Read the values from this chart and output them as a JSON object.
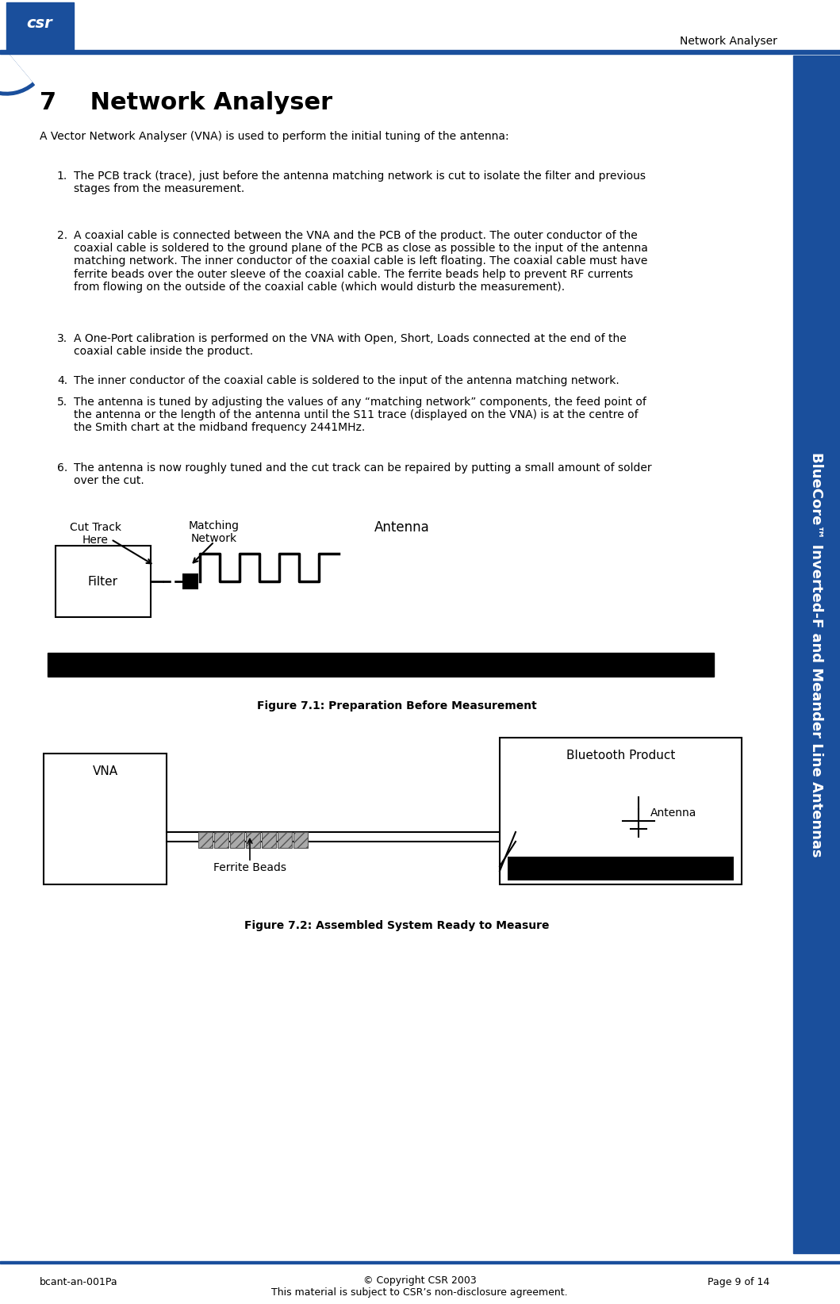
{
  "page_bg": "#ffffff",
  "header_line_color": "#1a4f9c",
  "header_text": "Network Analyser",
  "header_text_color": "#000000",
  "logo_blue_dark": "#1a4f9c",
  "logo_blue_light": "#4a90d9",
  "chapter_number": "7",
  "chapter_title": "Network Analyser",
  "intro_text": "A Vector Network Analyser (VNA) is used to perform the initial tuning of the antenna:",
  "list_items": [
    "The PCB track (trace), just before the antenna matching network is cut to isolate the filter and previous\nstages from the measurement.",
    "A coaxial cable is connected between the VNA and the PCB of the product. The outer conductor of the\ncoaxial cable is soldered to the ground plane of the PCB as close as possible to the input of the antenna\nmatching network. The inner conductor of the coaxial cable is left floating. The coaxial cable must have\nferrite beads over the outer sleeve of the coaxial cable. The ferrite beads help to prevent RF currents\nfrom flowing on the outside of the coaxial cable (which would disturb the measurement).",
    "A One-Port calibration is performed on the VNA with Open, Short, Loads connected at the end of the\ncoaxial cable inside the product.",
    "The inner conductor of the coaxial cable is soldered to the input of the antenna matching network.",
    "The antenna is tuned by adjusting the values of any “matching network” components, the feed point of\nthe antenna or the length of the antenna until the S11 trace (displayed on the VNA) is at the centre of\nthe Smith chart at the midband frequency 2441MHz.",
    "The antenna is now roughly tuned and the cut track can be repaired by putting a small amount of solder\nover the cut."
  ],
  "figure1_caption": "Figure 7.1: Preparation Before Measurement",
  "figure2_caption": "Figure 7.2: Assembled System Ready to Measure",
  "sidebar_text": "BlueCore™ Inverted-F and Meander Line Antennas",
  "sidebar_bg": "#1a4f9c",
  "sidebar_text_color": "#ffffff",
  "footer_left": "bcant-an-001Pa",
  "footer_center_line1": "© Copyright CSR 2003",
  "footer_center_line2": "This material is subject to CSR’s non-disclosure agreement.",
  "footer_right": "Page 9 of 14",
  "footer_line_color": "#1a4f9c",
  "black": "#000000",
  "gray_light": "#cccccc",
  "dark_gray": "#555555"
}
